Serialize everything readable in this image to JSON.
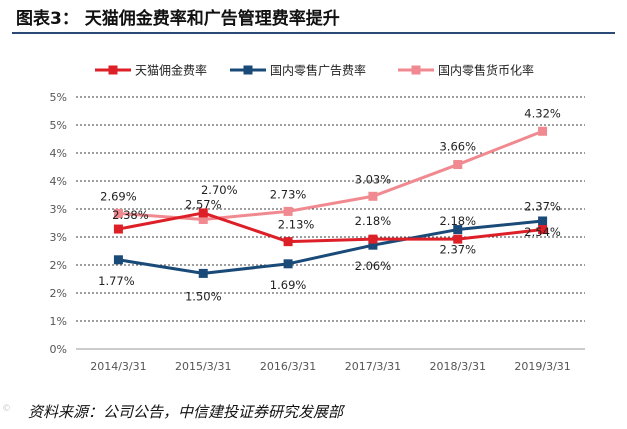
{
  "header": {
    "title": "图表3：   天猫佣金费率和广告管理费率提升"
  },
  "footer": {
    "source": "资料来源：公司公告，中信建投证券研究发展部",
    "watermark": "©"
  },
  "chart_data": {
    "type": "line",
    "title": "",
    "xlabel": "",
    "ylabel": "",
    "categories": [
      "2014/3/31",
      "2015/3/31",
      "2016/3/31",
      "2017/3/31",
      "2018/3/31",
      "2019/3/31"
    ],
    "y_tick_labels": [
      "0%",
      "1%",
      "2%",
      "2%",
      "3%",
      "3%",
      "4%",
      "4%",
      "5%",
      "5%"
    ],
    "ylim": [
      0,
      5
    ],
    "grid": true,
    "legend_position": "top",
    "series": [
      {
        "name": "天猫佣金费率",
        "color": "#dd2027",
        "values": [
          2.38,
          2.7,
          2.13,
          2.18,
          2.18,
          2.37
        ],
        "labels": [
          "2.38%",
          "2.70%",
          "2.13%",
          "2.18%",
          "2.18%",
          "2.37%"
        ]
      },
      {
        "name": "国内零售广告费率",
        "color": "#1a4a78",
        "values": [
          1.77,
          1.5,
          1.69,
          2.06,
          2.37,
          2.54
        ],
        "labels": [
          "1.77%",
          "1.50%",
          "1.69%",
          "2.06%",
          "2.37%",
          "2.54%"
        ]
      },
      {
        "name": "国内零售货币化率",
        "color": "#f08a90",
        "values": [
          2.69,
          2.57,
          2.73,
          3.03,
          3.66,
          4.32
        ],
        "labels": [
          "2.69%",
          "2.57%",
          "2.73%",
          "3.03%",
          "3.66%",
          "4.32%"
        ]
      }
    ]
  }
}
